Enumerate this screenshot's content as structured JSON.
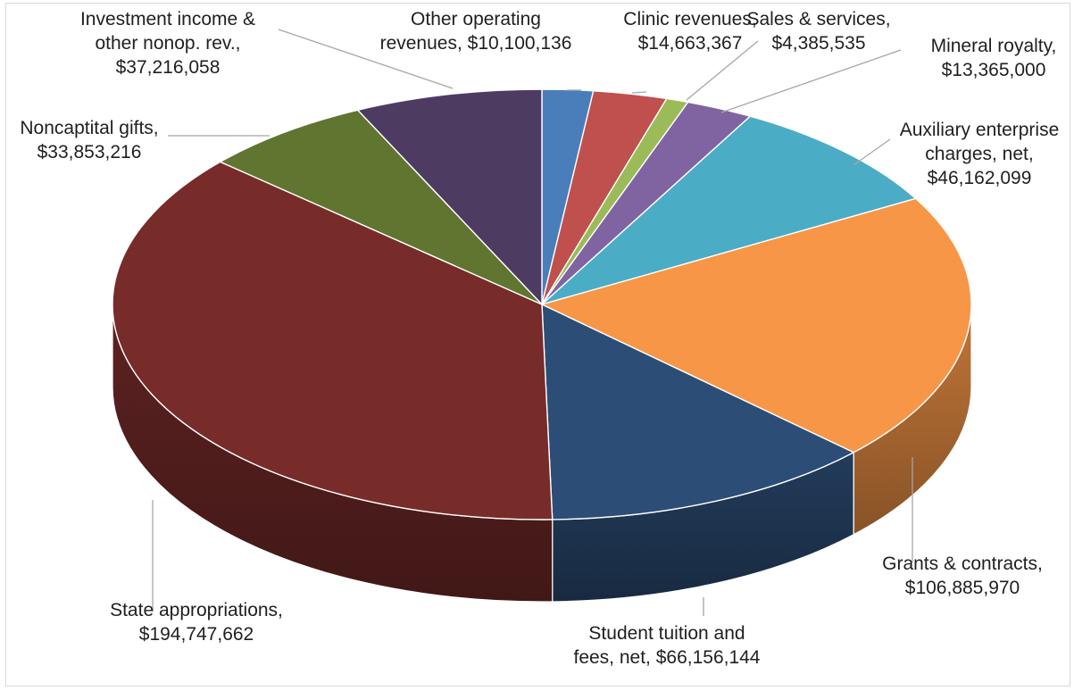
{
  "chart_data": {
    "type": "pie",
    "title": "",
    "three_d": true,
    "start_angle_deg": 0,
    "direction": "clockwise",
    "slices": [
      {
        "category": "Other operating revenues",
        "value": 10100136,
        "color": "#4a7ebb",
        "label_lines": [
          "Other operating",
          "revenues, $10,100,136"
        ]
      },
      {
        "category": "Clinic revenues",
        "value": 14663367,
        "color": "#c0504d",
        "label_lines": [
          "Clinic revenues,",
          "$14,663,367"
        ]
      },
      {
        "category": "Sales & services",
        "value": 4385535,
        "color": "#9bbb59",
        "label_lines": [
          "Sales & services,",
          "$4,385,535"
        ]
      },
      {
        "category": "Mineral royalty",
        "value": 13365000,
        "color": "#8064a2",
        "label_lines": [
          "Mineral royalty,",
          "$13,365,000"
        ]
      },
      {
        "category": "Auxiliary enterprise charges, net",
        "value": 46162099,
        "color": "#4bacc6",
        "label_lines": [
          "Auxiliary enterprise",
          "charges, net,",
          "$46,162,099"
        ]
      },
      {
        "category": "Grants & contracts",
        "value": 106885970,
        "color": "#f79646",
        "label_lines": [
          "Grants & contracts,",
          "$106,885,970"
        ]
      },
      {
        "category": "Student tuition and fees, net",
        "value": 66156144,
        "color": "#2c4d75",
        "label_lines": [
          "Student tuition and",
          "fees, net, $66,156,144"
        ]
      },
      {
        "category": "State appropriations",
        "value": 194747662,
        "color": "#772c2a",
        "label_lines": [
          "State appropriations,",
          "$194,747,662"
        ]
      },
      {
        "category": "Noncaptital gifts",
        "value": 33853216,
        "color": "#5f7530",
        "label_lines": [
          "Noncaptital gifts,",
          "$33,853,216"
        ]
      },
      {
        "category": "Investment income & other nonop. rev.",
        "value": 37216058,
        "color": "#4d3b62",
        "label_lines": [
          "Investment income &",
          "other nonop. rev.,",
          "$37,216,058"
        ]
      }
    ]
  }
}
